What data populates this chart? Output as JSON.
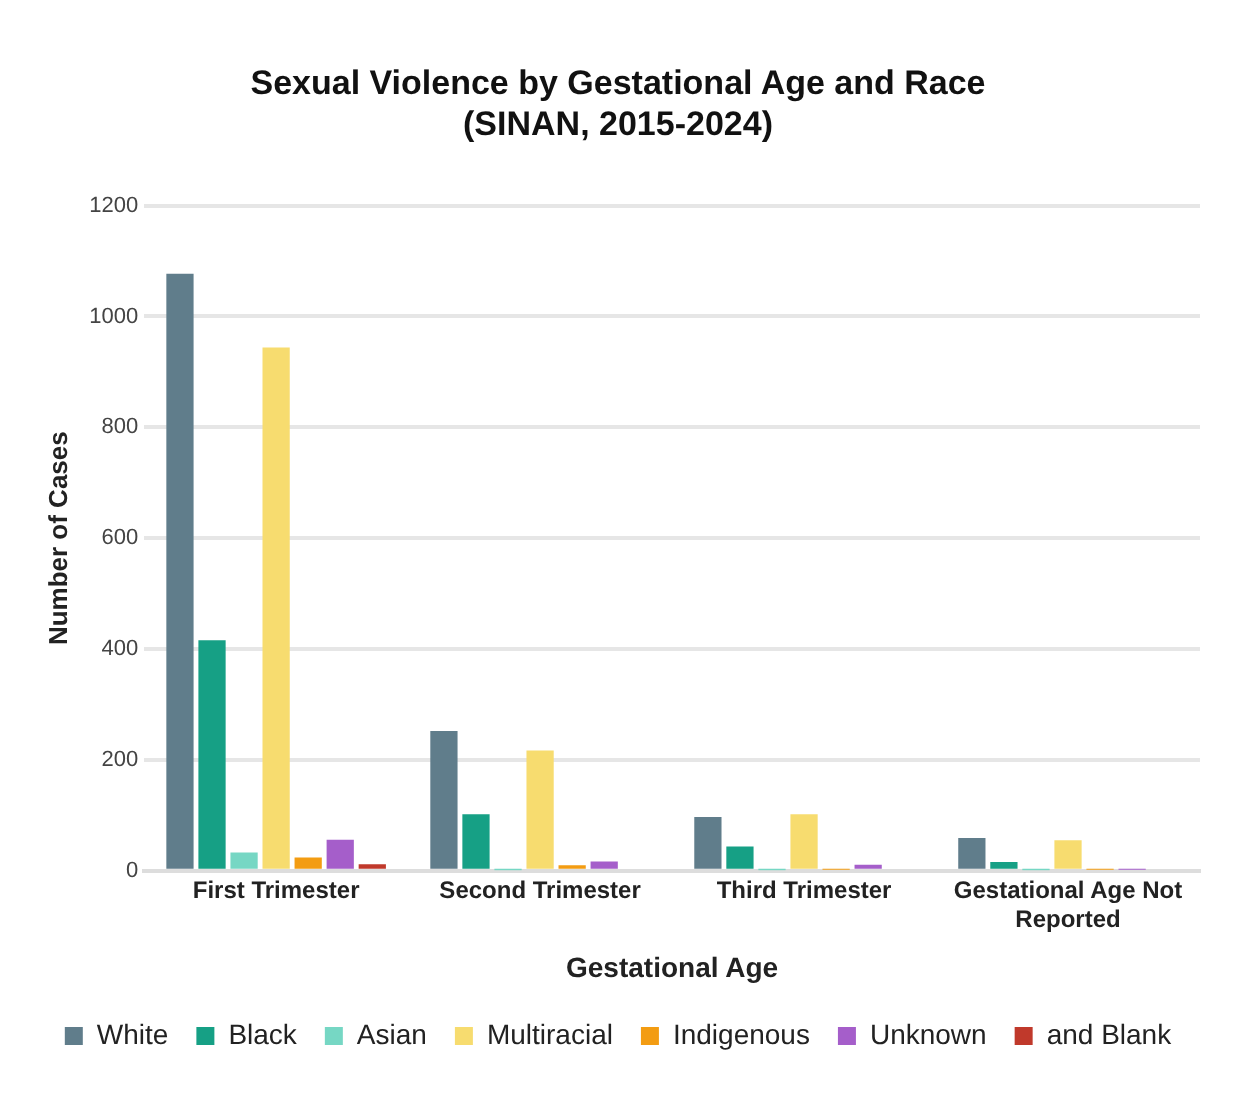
{
  "chart_data": {
    "type": "bar",
    "title": "Sexual Violence by Gestational Age and Race",
    "subtitle": "(SINAN, 2015-2024)",
    "xlabel": "Gestational Age",
    "ylabel": "Number of Cases",
    "categories": [
      "First Trimester",
      "Second Trimester",
      "Third Trimester",
      "Gestational Age Not Reported"
    ],
    "series": [
      {
        "name": "White",
        "color": "#607d8b",
        "values": [
          1077,
          252,
          97,
          59
        ]
      },
      {
        "name": "Black",
        "color": "#16a085",
        "values": [
          416,
          102,
          44,
          16
        ]
      },
      {
        "name": "Asian",
        "color": "#76d7c4",
        "values": [
          33,
          1,
          1,
          1
        ]
      },
      {
        "name": "Multiracial",
        "color": "#f7dc6f",
        "values": [
          944,
          217,
          102,
          55
        ]
      },
      {
        "name": "Indigenous",
        "color": "#f39c12",
        "values": [
          24,
          10,
          2,
          2
        ]
      },
      {
        "name": "Unknown",
        "color": "#a55eca",
        "values": [
          56,
          17,
          11,
          2
        ]
      },
      {
        "name": "and Blank",
        "color": "#c0392b",
        "values": [
          12,
          null,
          null,
          null
        ]
      }
    ],
    "ylim": [
      0,
      1200
    ],
    "yticks": [
      0,
      200,
      400,
      600,
      800,
      1000,
      1200
    ],
    "grid": "y",
    "legend": "bottom"
  }
}
